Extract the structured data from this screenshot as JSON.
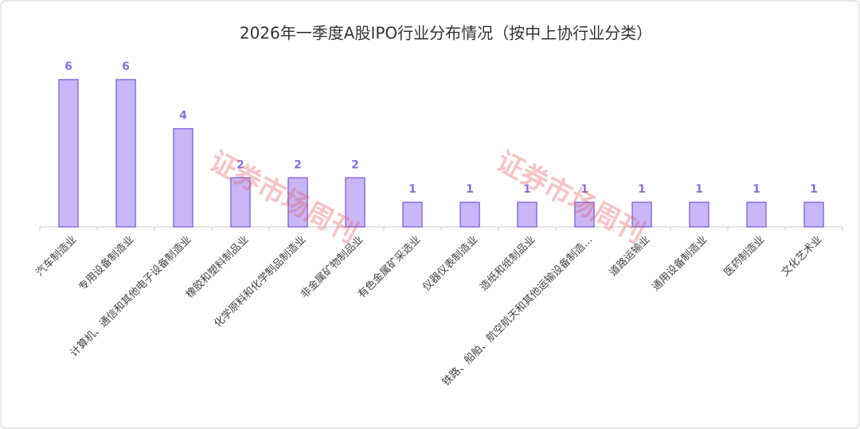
{
  "chart_data": {
    "type": "bar",
    "title": "2026年一季度A股IPO行业分布情况（按中上协行业分类）",
    "watermark": "证券市场周刊",
    "categories": [
      "汽车制造业",
      "专用设备制造业",
      "计算机、通信和其他电子设备制造业",
      "橡胶和塑料制品业",
      "化学原料和化学制品制造业",
      "非金属矿物制品业",
      "有色金属矿采选业",
      "仪器仪表制造业",
      "造纸和纸制品业",
      "铁路、船舶、航空航天和其他运输设备制造…",
      "道路运输业",
      "通用设备制造业",
      "医药制造业",
      "文化艺术业"
    ],
    "values": [
      6,
      6,
      4,
      2,
      2,
      2,
      1,
      1,
      1,
      1,
      1,
      1,
      1,
      1
    ],
    "color": "#c8b6f6",
    "edge_color": "#8a6fe0"
  }
}
